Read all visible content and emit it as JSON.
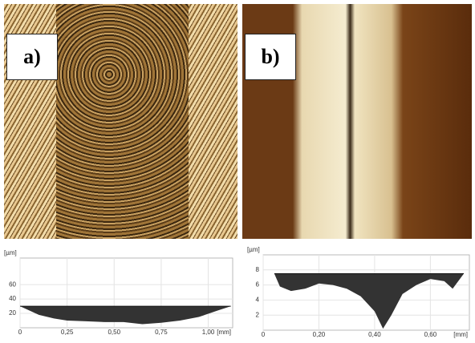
{
  "panels": [
    {
      "label": "a)"
    },
    {
      "label": "b)"
    }
  ],
  "chart_data": [
    {
      "type": "area",
      "y_label": "[µm]",
      "x_label": "[mm]",
      "x": [
        0,
        0.05,
        0.1,
        0.18,
        0.25,
        0.35,
        0.45,
        0.55,
        0.65,
        0.75,
        0.85,
        0.95,
        1.05,
        1.12
      ],
      "values": [
        30,
        24,
        18,
        13,
        10,
        9,
        8,
        8,
        5,
        7,
        10,
        15,
        24,
        30
      ],
      "reference": 30,
      "color": "#333333",
      "xlim": [
        0,
        1.13
      ],
      "ylim": [
        0,
        97
      ],
      "xticks": [
        0,
        {
          "value": 0.25,
          "label": "0,25"
        },
        {
          "value": 0.5,
          "label": "0,50"
        },
        {
          "value": 0.75,
          "label": "0,75"
        },
        {
          "value": 1.0,
          "label": "1,00"
        }
      ],
      "yticks": [
        20,
        40,
        60
      ],
      "grid": true
    },
    {
      "type": "area",
      "y_label": "[µm]",
      "x_label": "[mm]",
      "x": [
        0.04,
        0.06,
        0.1,
        0.15,
        0.2,
        0.25,
        0.3,
        0.35,
        0.4,
        0.43,
        0.46,
        0.5,
        0.55,
        0.6,
        0.65,
        0.68,
        0.72
      ],
      "values": [
        7.5,
        5.8,
        5.2,
        5.5,
        6.2,
        6.0,
        5.5,
        4.5,
        2.5,
        0.2,
        2.0,
        4.8,
        6.0,
        6.8,
        6.5,
        5.5,
        7.5
      ],
      "reference": 7.5,
      "color": "#333333",
      "xlim": [
        0,
        0.74
      ],
      "ylim": [
        0,
        10
      ],
      "xticks": [
        0,
        {
          "value": 0.2,
          "label": "0,20"
        },
        {
          "value": 0.4,
          "label": "0,40"
        },
        {
          "value": 0.6,
          "label": "0,60"
        }
      ],
      "yticks": [
        2,
        4,
        6,
        8
      ],
      "grid": true
    }
  ]
}
